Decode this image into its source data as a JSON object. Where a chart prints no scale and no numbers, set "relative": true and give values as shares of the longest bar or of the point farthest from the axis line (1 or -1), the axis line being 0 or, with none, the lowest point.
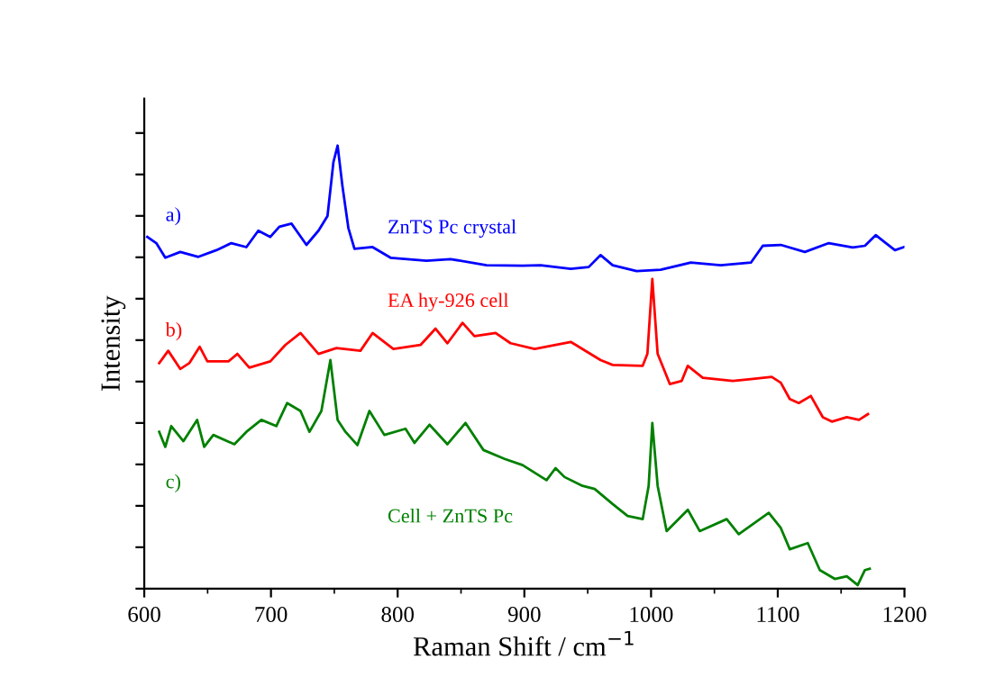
{
  "chart_data": {
    "type": "line",
    "relative": true,
    "xlabel": "Raman Shift / cm$^{−1}$",
    "ylabel": "Intensity",
    "xlim": [
      600,
      1200
    ],
    "xticks": [
      600,
      700,
      800,
      900,
      1000,
      1100,
      1200
    ],
    "annotations": [
      "a)",
      "b)",
      "c)"
    ],
    "tick_labels": "x",
    "grid": false,
    "legend": false,
    "series": [
      {
        "name": "ZnTS Pc crystal",
        "color": "#0000ff",
        "x": [
          602.4,
          609.5,
          616.6,
          628.4,
          642.7,
          656.9,
          668.7,
          680.6,
          690.0,
          699.5,
          706.6,
          716.2,
          728.0,
          737.5,
          744.6,
          749.3,
          752.6,
          756.4,
          761.1,
          765.9,
          780.2,
          794.4,
          822.8,
          841.7,
          870.2,
          898.6,
          912.8,
          936.6,
          950.8,
          960.2,
          969.7,
          988.6,
          1007.6,
          1031.3,
          1055.0,
          1078.8,
          1088.2,
          1102.4,
          1121.4,
          1140.3,
          1159.2,
          1168.8,
          1177.3,
          1185.4,
          1192.5,
          1199.6
        ],
        "values": [
          0.794,
          0.78,
          0.747,
          0.76,
          0.749,
          0.764,
          0.78,
          0.771,
          0.808,
          0.794,
          0.817,
          0.824,
          0.776,
          0.808,
          0.841,
          0.963,
          1.0,
          0.909,
          0.814,
          0.767,
          0.771,
          0.747,
          0.74,
          0.744,
          0.73,
          0.729,
          0.73,
          0.722,
          0.726,
          0.753,
          0.73,
          0.717,
          0.72,
          0.736,
          0.73,
          0.736,
          0.774,
          0.776,
          0.76,
          0.78,
          0.77,
          0.774,
          0.798,
          0.78,
          0.764,
          0.771
        ]
      },
      {
        "name": "EA hy-926 cell",
        "color": "#ff0000",
        "x": [
          611.8,
          618.9,
          628.4,
          635.5,
          643.7,
          649.8,
          666.4,
          673.5,
          682.9,
          699.5,
          711.3,
          723.3,
          737.5,
          751.7,
          770.6,
          780.2,
          796.6,
          818.0,
          829.9,
          839.3,
          851.2,
          860.6,
          877.3,
          889.1,
          908.1,
          924.6,
          936.6,
          960.2,
          969.7,
          993.4,
          997.1,
          1001.0,
          1005.2,
          1014.8,
          1024.2,
          1029.0,
          1040.8,
          1064.5,
          1078.8,
          1095.2,
          1102.4,
          1109.5,
          1116.6,
          1126.1,
          1135.6,
          1142.7,
          1154.5,
          1164.1,
          1171.2
        ],
        "values": [
          0.509,
          0.537,
          0.496,
          0.509,
          0.546,
          0.513,
          0.513,
          0.53,
          0.499,
          0.513,
          0.55,
          0.577,
          0.53,
          0.543,
          0.537,
          0.577,
          0.541,
          0.55,
          0.587,
          0.554,
          0.6,
          0.57,
          0.577,
          0.554,
          0.541,
          0.55,
          0.557,
          0.516,
          0.505,
          0.503,
          0.53,
          0.699,
          0.53,
          0.462,
          0.469,
          0.503,
          0.476,
          0.469,
          0.473,
          0.478,
          0.465,
          0.428,
          0.419,
          0.435,
          0.387,
          0.377,
          0.387,
          0.381,
          0.394
        ]
      },
      {
        "name": "Cell + ZnTS Pc",
        "color": "#008000",
        "x": [
          611.8,
          616.6,
          621.3,
          630.9,
          641.7,
          647.3,
          654.5,
          671.1,
          680.6,
          692.4,
          704.2,
          712.8,
          723.3,
          730.4,
          739.8,
          746.9,
          752.6,
          758.8,
          768.2,
          777.7,
          789.5,
          806.2,
          813.3,
          825.1,
          839.3,
          853.5,
          867.7,
          884.4,
          898.6,
          917.5,
          924.6,
          931.7,
          945.9,
          955.5,
          969.7,
          981.5,
          993.4,
          998.1,
          1001.0,
          1005.2,
          1012.3,
          1029.0,
          1038.4,
          1059.7,
          1069.2,
          1092.9,
          1102.4,
          1109.5,
          1123.7,
          1133.2,
          1145.0,
          1154.5,
          1163.1,
          1168.8,
          1172.6
        ],
        "values": [
          0.354,
          0.32,
          0.367,
          0.333,
          0.381,
          0.32,
          0.347,
          0.326,
          0.354,
          0.381,
          0.367,
          0.419,
          0.401,
          0.354,
          0.401,
          0.516,
          0.381,
          0.354,
          0.324,
          0.401,
          0.347,
          0.361,
          0.329,
          0.37,
          0.326,
          0.374,
          0.313,
          0.293,
          0.279,
          0.245,
          0.272,
          0.252,
          0.232,
          0.225,
          0.191,
          0.164,
          0.157,
          0.232,
          0.374,
          0.232,
          0.13,
          0.178,
          0.13,
          0.157,
          0.123,
          0.171,
          0.137,
          0.089,
          0.103,
          0.042,
          0.022,
          0.028,
          0.008,
          0.042,
          0.045
        ]
      }
    ]
  }
}
